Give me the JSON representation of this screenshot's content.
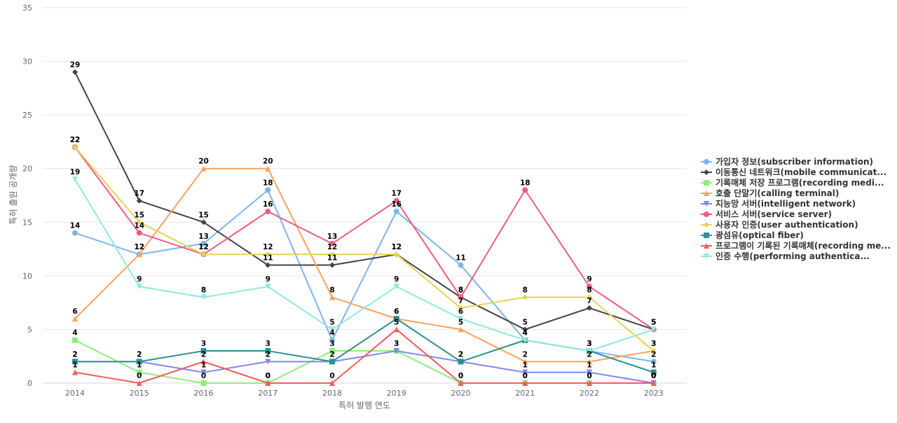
{
  "chart_data": {
    "type": "line",
    "xlabel": "특허 발행 연도",
    "ylabel": "특허 출원 공개량",
    "ylim": [
      0,
      35
    ],
    "yticks": [
      0,
      5,
      10,
      15,
      20,
      25,
      30,
      35
    ],
    "categories": [
      "2014",
      "2015",
      "2016",
      "2017",
      "2018",
      "2019",
      "2020",
      "2021",
      "2022",
      "2023"
    ],
    "grid": true,
    "legend_position": "right",
    "series": [
      {
        "name": "가입자 정보(subscriber information)",
        "color": "#7cb5ec",
        "marker": "circle",
        "values": [
          14,
          12,
          13,
          18,
          4,
          16,
          11,
          4,
          3,
          2
        ]
      },
      {
        "name": "이동통신 네트워크(mobile communicat...",
        "color": "#434348",
        "marker": "diamond",
        "values": [
          29,
          17,
          15,
          11,
          11,
          12,
          8,
          5,
          7,
          5
        ]
      },
      {
        "name": "기록매체 저장 프로그램(recording medi...",
        "color": "#90ed7d",
        "marker": "square",
        "values": [
          4,
          1,
          0,
          0,
          3,
          3,
          0,
          0,
          0,
          0
        ]
      },
      {
        "name": "호출 단말기(calling terminal)",
        "color": "#f7a35c",
        "marker": "triangle",
        "values": [
          6,
          12,
          20,
          20,
          8,
          6,
          5,
          2,
          2,
          3
        ]
      },
      {
        "name": "지능망 서버(intelligent network)",
        "color": "#8085e9",
        "marker": "triangle-down",
        "values": [
          2,
          2,
          1,
          2,
          2,
          3,
          2,
          1,
          1,
          0
        ]
      },
      {
        "name": "서비스 서버(service server)",
        "color": "#f15c80",
        "marker": "circle",
        "values": [
          22,
          14,
          12,
          16,
          13,
          17,
          8,
          18,
          9,
          5
        ]
      },
      {
        "name": "사용자 인증(user authentication)",
        "color": "#e4d354",
        "marker": "diamond",
        "values": [
          22,
          15,
          12,
          12,
          12,
          12,
          7,
          8,
          8,
          3
        ]
      },
      {
        "name": "광섬유(optical fiber)",
        "color": "#2b908f",
        "marker": "square",
        "values": [
          2,
          2,
          3,
          3,
          2,
          6,
          2,
          4,
          3,
          1
        ]
      },
      {
        "name": "프로그램이 기록된 기록매체(recording me...",
        "color": "#f45b5b",
        "marker": "triangle",
        "values": [
          1,
          0,
          2,
          0,
          0,
          5,
          0,
          0,
          0,
          0
        ]
      },
      {
        "name": "인증 수행(performing authentica...",
        "color": "#91e8e1",
        "marker": "triangle-down",
        "values": [
          19,
          9,
          8,
          9,
          5,
          9,
          6,
          4,
          3,
          5
        ]
      }
    ]
  }
}
